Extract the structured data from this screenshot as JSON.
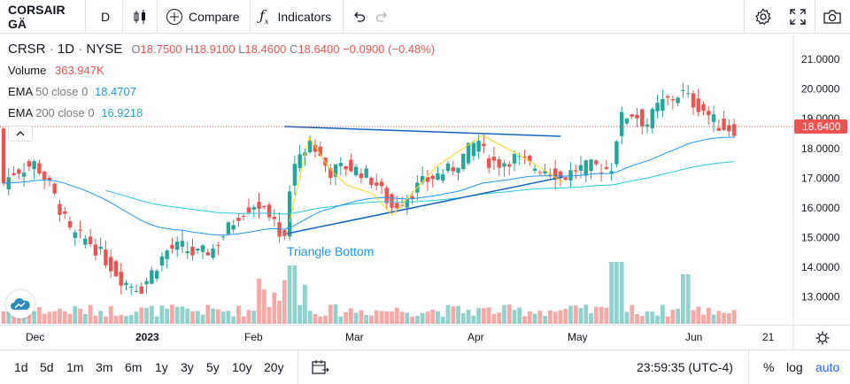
{
  "toolbar": {
    "symbol": "CORSAIR GÄ",
    "interval": "D",
    "compare_label": "Compare",
    "indicators_label": "Indicators"
  },
  "legend": {
    "symbol": "CRSR",
    "interval": "1D",
    "exchange": "NYSE",
    "o_label": "O",
    "o": "18.7500",
    "h_label": "H",
    "h": "18.9100",
    "l_label": "L",
    "l": "18.4600",
    "c_label": "C",
    "c": "18.6400",
    "change": "−0.0900 (−0.48%)",
    "volume_label": "Volume",
    "volume": "363.947K",
    "ema50_label": "EMA",
    "ema50_params": "50 close 0",
    "ema50": "18.4707",
    "ema200_label": "EMA",
    "ema200_params": "200 close 0",
    "ema200": "16.9218"
  },
  "price_axis": {
    "ticks": [
      "21.0000",
      "20.0000",
      "19.0000",
      "18.0000",
      "17.0000",
      "16.0000",
      "15.0000",
      "14.0000",
      "13.0000"
    ],
    "last_price": "18.6400"
  },
  "time_axis": {
    "labels": [
      "Dec",
      "2023",
      "Feb",
      "Mar",
      "Apr",
      "May",
      "Jun",
      "21"
    ]
  },
  "pattern": {
    "label": "Triangle Bottom"
  },
  "ranges": [
    "1d",
    "5d",
    "1m",
    "3m",
    "6m",
    "1y",
    "3y",
    "5y",
    "10y",
    "20y"
  ],
  "status": {
    "clock": "23:59:35 (UTC-4)",
    "percent": "%",
    "log": "log",
    "auto": "auto"
  },
  "colors": {
    "up": "#26a69a",
    "down": "#ef5350",
    "ema50": "#2196f3",
    "ema200": "#26c6da",
    "pattern_line": "#1565c0",
    "pattern_zigzag": "#f9d71c",
    "accent": "#2962ff"
  },
  "chart_data": {
    "type": "candlestick",
    "y_range": [
      12.3,
      21.6
    ],
    "y_scale": "linear",
    "grid": false,
    "x_categories": [
      "Dec",
      "2023",
      "Feb",
      "Mar",
      "Apr",
      "May",
      "Jun",
      "21"
    ],
    "series": [
      {
        "name": "CRSR",
        "last": {
          "open": 18.75,
          "high": 18.91,
          "low": 18.46,
          "close": 18.64,
          "change": -0.09,
          "change_pct": -0.48
        }
      },
      {
        "name": "Volume",
        "last": 363947
      },
      {
        "name": "EMA 50 close 0",
        "last": 18.4707
      },
      {
        "name": "EMA 200 close 0",
        "last": 16.9218
      }
    ],
    "annotations": [
      "Triangle Bottom"
    ]
  }
}
